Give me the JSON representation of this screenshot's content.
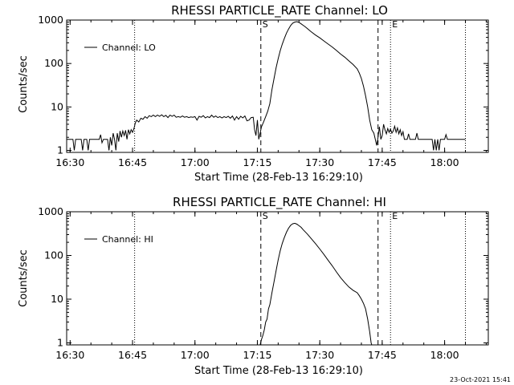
{
  "footer": {
    "timestamp": "23-Oct-2021 15:41"
  },
  "chart_data": [
    {
      "type": "line",
      "title": "RHESSI PARTICLE_RATE Channel: LO",
      "xlabel": "Start Time (28-Feb-13 16:29:10)",
      "ylabel": "Counts/sec",
      "yscale": "log",
      "ylim": [
        0.9,
        1000
      ],
      "xlim": [
        "16:29:10",
        "18:10:30"
      ],
      "xticks": [
        "16:30",
        "16:45",
        "17:00",
        "17:15",
        "17:30",
        "17:45",
        "18:00"
      ],
      "yticks": [
        "1",
        "10",
        "100",
        "1000"
      ],
      "legend": {
        "position": "top-left",
        "entries": [
          "Channel: LO"
        ]
      },
      "vlines": [
        {
          "label": "",
          "time": "16:45:30",
          "style": "dotted"
        },
        {
          "label": "S",
          "time": "17:15:50",
          "style": "dashed"
        },
        {
          "label": "",
          "time": "17:44:00",
          "style": "dashed"
        },
        {
          "label": "E",
          "time": "17:47:00",
          "style": "dotted"
        },
        {
          "label": "",
          "time": "18:05:00",
          "style": "dotted"
        }
      ],
      "series": [
        {
          "name": "Channel: LO",
          "points": [
            [
              "16:29:10",
              1.8
            ],
            [
              "16:30:40",
              1.8
            ],
            [
              "16:31:00",
              1.0
            ],
            [
              "16:31:20",
              1.8
            ],
            [
              "16:32:40",
              1.8
            ],
            [
              "16:33:00",
              1.0
            ],
            [
              "16:33:20",
              1.8
            ],
            [
              "16:34:00",
              1.8
            ],
            [
              "16:34:20",
              1.0
            ],
            [
              "16:34:40",
              1.8
            ],
            [
              "16:37:00",
              1.8
            ],
            [
              "16:37:20",
              2.3
            ],
            [
              "16:37:40",
              1.5
            ],
            [
              "16:38:00",
              1.8
            ],
            [
              "16:39:00",
              1.8
            ],
            [
              "16:39:20",
              1.0
            ],
            [
              "16:39:40",
              2.0
            ],
            [
              "16:40:00",
              1.3
            ],
            [
              "16:40:20",
              2.5
            ],
            [
              "16:40:40",
              1.8
            ],
            [
              "16:41:00",
              1.0
            ],
            [
              "16:41:20",
              2.5
            ],
            [
              "16:41:40",
              1.6
            ],
            [
              "16:42:00",
              2.8
            ],
            [
              "16:42:20",
              2.0
            ],
            [
              "16:42:40",
              2.8
            ],
            [
              "16:43:00",
              2.2
            ],
            [
              "16:43:20",
              2.9
            ],
            [
              "16:43:40",
              1.8
            ],
            [
              "16:44:00",
              3.0
            ],
            [
              "16:44:20",
              2.4
            ],
            [
              "16:44:40",
              3.0
            ],
            [
              "16:45:00",
              2.6
            ],
            [
              "16:45:20",
              3.2
            ],
            [
              "16:45:40",
              4.3
            ],
            [
              "16:46:00",
              5.0
            ],
            [
              "16:46:30",
              4.5
            ],
            [
              "16:47:00",
              5.5
            ],
            [
              "16:47:30",
              5.2
            ],
            [
              "16:48:00",
              6.0
            ],
            [
              "16:48:30",
              5.5
            ],
            [
              "16:49:00",
              6.3
            ],
            [
              "16:49:30",
              6.0
            ],
            [
              "16:50:00",
              6.5
            ],
            [
              "16:50:30",
              6.0
            ],
            [
              "16:51:00",
              6.5
            ],
            [
              "16:51:30",
              6.1
            ],
            [
              "16:52:00",
              6.6
            ],
            [
              "16:52:30",
              6.0
            ],
            [
              "16:53:00",
              6.4
            ],
            [
              "16:53:30",
              5.7
            ],
            [
              "16:54:00",
              6.5
            ],
            [
              "16:54:30",
              6.1
            ],
            [
              "16:55:00",
              6.5
            ],
            [
              "16:55:30",
              5.8
            ],
            [
              "16:56:00",
              6.0
            ],
            [
              "16:56:30",
              5.8
            ],
            [
              "16:57:00",
              6.2
            ],
            [
              "16:57:30",
              5.8
            ],
            [
              "16:58:00",
              6.0
            ],
            [
              "16:58:30",
              5.7
            ],
            [
              "16:59:00",
              5.9
            ],
            [
              "16:59:30",
              5.8
            ],
            [
              "17:00:00",
              6.0
            ],
            [
              "17:00:30",
              5.0
            ],
            [
              "17:01:00",
              6.1
            ],
            [
              "17:01:30",
              5.8
            ],
            [
              "17:02:00",
              6.3
            ],
            [
              "17:02:30",
              5.6
            ],
            [
              "17:03:00",
              6.0
            ],
            [
              "17:03:30",
              5.7
            ],
            [
              "17:04:00",
              6.5
            ],
            [
              "17:04:30",
              5.8
            ],
            [
              "17:05:00",
              6.2
            ],
            [
              "17:05:30",
              5.7
            ],
            [
              "17:06:00",
              6.0
            ],
            [
              "17:06:30",
              5.6
            ],
            [
              "17:07:00",
              6.0
            ],
            [
              "17:07:30",
              5.7
            ],
            [
              "17:08:00",
              6.1
            ],
            [
              "17:08:30",
              5.5
            ],
            [
              "17:09:00",
              6.2
            ],
            [
              "17:09:30",
              5.0
            ],
            [
              "17:10:00",
              6.0
            ],
            [
              "17:10:30",
              5.2
            ],
            [
              "17:11:00",
              6.1
            ],
            [
              "17:11:30",
              5.6
            ],
            [
              "17:12:00",
              6.2
            ],
            [
              "17:12:30",
              4.8
            ],
            [
              "17:13:00",
              5.0
            ],
            [
              "17:13:30",
              5.7
            ],
            [
              "17:14:00",
              5.8
            ],
            [
              "17:14:20",
              3.0
            ],
            [
              "17:14:40",
              2.2
            ],
            [
              "17:15:00",
              5.0
            ],
            [
              "17:15:20",
              1.8
            ],
            [
              "17:15:40",
              2.5
            ],
            [
              "17:16:00",
              3.5
            ],
            [
              "17:16:30",
              4.5
            ],
            [
              "17:17:00",
              6.0
            ],
            [
              "17:17:30",
              8.0
            ],
            [
              "17:18:00",
              12
            ],
            [
              "17:18:30",
              25
            ],
            [
              "17:19:00",
              45
            ],
            [
              "17:19:30",
              80
            ],
            [
              "17:20:00",
              130
            ],
            [
              "17:20:30",
              200
            ],
            [
              "17:21:00",
              280
            ],
            [
              "17:21:30",
              380
            ],
            [
              "17:22:00",
              500
            ],
            [
              "17:22:30",
              620
            ],
            [
              "17:23:00",
              750
            ],
            [
              "17:23:30",
              850
            ],
            [
              "17:24:00",
              900
            ],
            [
              "17:24:30",
              920
            ],
            [
              "17:25:00",
              880
            ],
            [
              "17:25:30",
              820
            ],
            [
              "17:26:00",
              760
            ],
            [
              "17:26:30",
              700
            ],
            [
              "17:27:00",
              640
            ],
            [
              "17:27:30",
              580
            ],
            [
              "17:28:00",
              530
            ],
            [
              "17:29:00",
              450
            ],
            [
              "17:30:00",
              390
            ],
            [
              "17:31:00",
              330
            ],
            [
              "17:32:00",
              280
            ],
            [
              "17:33:00",
              240
            ],
            [
              "17:34:00",
              200
            ],
            [
              "17:35:00",
              165
            ],
            [
              "17:36:00",
              140
            ],
            [
              "17:37:00",
              115
            ],
            [
              "17:38:00",
              95
            ],
            [
              "17:39:00",
              75
            ],
            [
              "17:39:30",
              60
            ],
            [
              "17:40:00",
              45
            ],
            [
              "17:40:30",
              30
            ],
            [
              "17:41:00",
              18
            ],
            [
              "17:41:30",
              10
            ],
            [
              "17:42:00",
              5
            ],
            [
              "17:42:30",
              3
            ],
            [
              "17:43:00",
              2.5
            ],
            [
              "17:43:20",
              1.8
            ],
            [
              "17:43:40",
              1.3
            ],
            [
              "17:44:00",
              2.0
            ],
            [
              "17:44:20",
              3.5
            ],
            [
              "17:44:40",
              1.8
            ],
            [
              "17:45:00",
              2.2
            ],
            [
              "17:45:20",
              4.0
            ],
            [
              "17:45:40",
              3.0
            ],
            [
              "17:46:00",
              2.4
            ],
            [
              "17:46:20",
              3.2
            ],
            [
              "17:46:40",
              2.6
            ],
            [
              "17:47:00",
              3.1
            ],
            [
              "17:47:20",
              2.5
            ],
            [
              "17:47:40",
              2.8
            ],
            [
              "17:48:00",
              3.6
            ],
            [
              "17:48:20",
              2.6
            ],
            [
              "17:48:40",
              3.3
            ],
            [
              "17:49:00",
              2.4
            ],
            [
              "17:49:20",
              3.0
            ],
            [
              "17:49:40",
              2.2
            ],
            [
              "17:50:00",
              2.7
            ],
            [
              "17:50:20",
              1.8
            ],
            [
              "17:51:00",
              1.8
            ],
            [
              "17:51:20",
              2.4
            ],
            [
              "17:51:40",
              1.8
            ],
            [
              "17:53:00",
              1.8
            ],
            [
              "17:53:20",
              2.5
            ],
            [
              "17:53:40",
              1.8
            ],
            [
              "17:57:00",
              1.8
            ],
            [
              "17:57:20",
              1.0
            ],
            [
              "17:57:40",
              1.8
            ],
            [
              "17:58:00",
              1.0
            ],
            [
              "17:58:20",
              1.8
            ],
            [
              "17:58:40",
              1.0
            ],
            [
              "17:59:00",
              1.8
            ],
            [
              "18:00:00",
              1.8
            ],
            [
              "18:00:20",
              2.3
            ],
            [
              "18:00:40",
              1.8
            ],
            [
              "18:05:00",
              1.8
            ]
          ]
        }
      ]
    },
    {
      "type": "line",
      "title": "RHESSI PARTICLE_RATE Channel: HI",
      "xlabel": "Start Time (28-Feb-13 16:29:10)",
      "ylabel": "Counts/sec",
      "yscale": "log",
      "ylim": [
        0.9,
        1000
      ],
      "xlim": [
        "16:29:10",
        "18:10:30"
      ],
      "xticks": [
        "16:30",
        "16:45",
        "17:00",
        "17:15",
        "17:30",
        "17:45",
        "18:00"
      ],
      "yticks": [
        "1",
        "10",
        "100",
        "1000"
      ],
      "legend": {
        "position": "top-left",
        "entries": [
          "Channel: HI"
        ]
      },
      "vlines": [
        {
          "label": "",
          "time": "16:45:30",
          "style": "dotted"
        },
        {
          "label": "S",
          "time": "17:15:50",
          "style": "dashed"
        },
        {
          "label": "",
          "time": "17:44:00",
          "style": "dashed"
        },
        {
          "label": "E",
          "time": "17:47:00",
          "style": "dotted"
        },
        {
          "label": "",
          "time": "18:05:00",
          "style": "dotted"
        }
      ],
      "series": [
        {
          "name": "Channel: HI",
          "points": [
            [
              "17:15:40",
              0.8
            ],
            [
              "17:16:00",
              1.2
            ],
            [
              "17:16:20",
              1.5
            ],
            [
              "17:16:40",
              2.0
            ],
            [
              "17:17:00",
              3.0
            ],
            [
              "17:17:20",
              3.5
            ],
            [
              "17:17:40",
              6.0
            ],
            [
              "17:18:00",
              7.5
            ],
            [
              "17:18:30",
              14
            ],
            [
              "17:19:00",
              25
            ],
            [
              "17:19:30",
              45
            ],
            [
              "17:20:00",
              80
            ],
            [
              "17:20:30",
              130
            ],
            [
              "17:21:00",
              190
            ],
            [
              "17:21:30",
              260
            ],
            [
              "17:22:00",
              340
            ],
            [
              "17:22:30",
              420
            ],
            [
              "17:23:00",
              490
            ],
            [
              "17:23:30",
              530
            ],
            [
              "17:24:00",
              545
            ],
            [
              "17:24:30",
              520
            ],
            [
              "17:25:00",
              480
            ],
            [
              "17:25:30",
              440
            ],
            [
              "17:26:00",
              390
            ],
            [
              "17:27:00",
              310
            ],
            [
              "17:28:00",
              240
            ],
            [
              "17:29:00",
              185
            ],
            [
              "17:30:00",
              140
            ],
            [
              "17:31:00",
              105
            ],
            [
              "17:32:00",
              78
            ],
            [
              "17:33:00",
              58
            ],
            [
              "17:34:00",
              42
            ],
            [
              "17:35:00",
              31
            ],
            [
              "17:36:00",
              24
            ],
            [
              "17:37:00",
              19
            ],
            [
              "17:38:00",
              16
            ],
            [
              "17:39:00",
              14
            ],
            [
              "17:39:30",
              12
            ],
            [
              "17:40:00",
              10
            ],
            [
              "17:40:30",
              8
            ],
            [
              "17:41:00",
              6
            ],
            [
              "17:41:30",
              3.5
            ],
            [
              "17:42:00",
              1.8
            ],
            [
              "17:42:20",
              1.0
            ],
            [
              "17:42:30",
              0.8
            ]
          ]
        }
      ]
    }
  ]
}
